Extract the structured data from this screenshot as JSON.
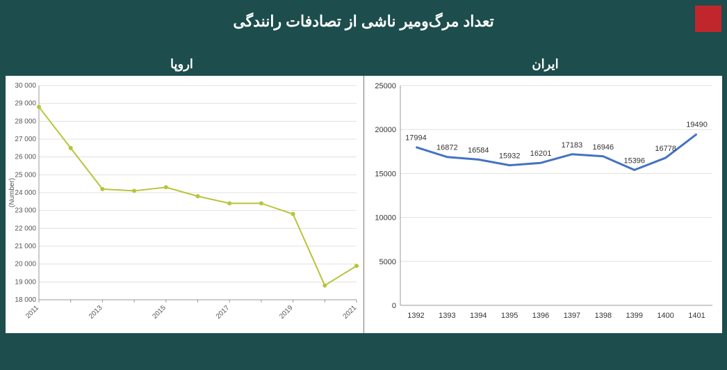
{
  "title": "تعداد مرگ‌ومیر ناشی از تصادفات رانندگی",
  "corner_color": "#c0262c",
  "background_color": "#1d4d4d",
  "panels": {
    "left": {
      "subtitle": "اروپا",
      "chart": {
        "type": "line",
        "background_color": "#ffffff",
        "grid_color": "#e0e0e0",
        "axis_color": "#999999",
        "line_color": "#b8c43a",
        "marker_color": "#b8c43a",
        "line_width": 2,
        "marker_size": 3,
        "ylabel": "(Number)",
        "ylabel_fontsize": 10,
        "ylim": [
          18000,
          30000
        ],
        "ytick_step": 1000,
        "yticks": [
          "18 000",
          "19 000",
          "20 000",
          "21 000",
          "22 000",
          "23 000",
          "24 000",
          "25 000",
          "26 000",
          "27 000",
          "28 000",
          "29 000",
          "30 000"
        ],
        "xticks": [
          "2011",
          "",
          "2013",
          "",
          "2015",
          "",
          "2017",
          "",
          "2019",
          "",
          "2021"
        ],
        "x_rotation": -45,
        "values": [
          28800,
          26500,
          24200,
          24100,
          24300,
          23800,
          23400,
          23400,
          22800,
          18800,
          19900
        ],
        "label_fontsize": 10,
        "label_color": "#555555"
      }
    },
    "right": {
      "subtitle": "ایران",
      "chart": {
        "type": "line",
        "background_color": "#ffffff",
        "grid_color": "#e0e0e0",
        "axis_color": "#999999",
        "line_color": "#4472c4",
        "line_width": 3,
        "ylim": [
          0,
          25000
        ],
        "ytick_step": 5000,
        "yticks": [
          "0",
          "5000",
          "10000",
          "15000",
          "20000",
          "25000"
        ],
        "xticks": [
          "1392",
          "1393",
          "1394",
          "1395",
          "1396",
          "1397",
          "1398",
          "1399",
          "1400",
          "1401"
        ],
        "values": [
          17994,
          16872,
          16584,
          15932,
          16201,
          17183,
          16946,
          15396,
          16778,
          19490
        ],
        "data_labels": [
          "17994",
          "16872",
          "16584",
          "15932",
          "16201",
          "17183",
          "16946",
          "15396",
          "16778",
          "19490"
        ],
        "label_fontsize": 11,
        "label_color": "#333333",
        "tick_fontsize": 11
      }
    }
  }
}
